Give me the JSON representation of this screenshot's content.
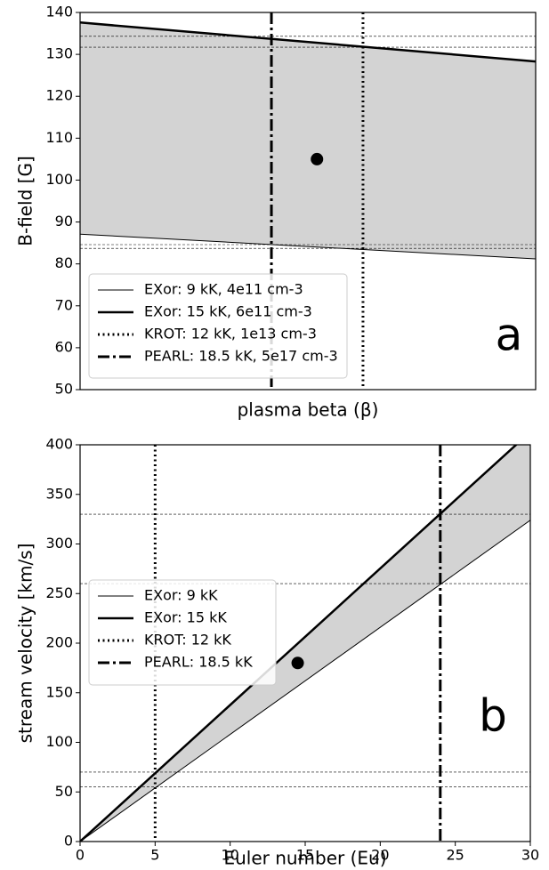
{
  "chart_data": [
    {
      "type": "line",
      "xlabel": "plasma beta (β)",
      "ylabel": "B-field [G]",
      "panel_label": "a",
      "xlim": [
        0,
        1
      ],
      "ylim": [
        50,
        140
      ],
      "yticks": [
        50,
        60,
        70,
        80,
        90,
        100,
        110,
        120,
        130,
        140
      ],
      "band_color": "#d3d3d3",
      "legend": "lower left",
      "series": [
        {
          "name": "EXor: 9 kK, 4e11 cm-3",
          "color": "#000000",
          "style": "solid",
          "width": 1,
          "x": [
            0,
            1
          ],
          "values": [
            87.1,
            81.2
          ]
        },
        {
          "name": "EXor: 15 kK, 6e11 cm-3",
          "color": "#000000",
          "style": "solid",
          "width": 2.5,
          "x": [
            0,
            1
          ],
          "values": [
            137.6,
            128.3
          ]
        },
        {
          "name": "KROT: 12 kK, 1e13 cm-3",
          "color": "#000000",
          "style": "dotted",
          "width": 3,
          "vline": 0.621
        },
        {
          "name": "PEARL: 18.5 kK, 5e17 cm-3",
          "color": "#000000",
          "style": "dashdot",
          "width": 3,
          "vline": 0.42
        }
      ],
      "hlines": [
        134.3,
        131.7,
        84.6,
        83.7
      ],
      "points": [
        {
          "x": 0.52,
          "y": 105
        }
      ]
    },
    {
      "type": "line",
      "xlabel": "Euler number (Eu)",
      "ylabel": "stream velocity [km/s]",
      "panel_label": "b",
      "xlim": [
        0,
        30
      ],
      "xticks": [
        0,
        5,
        10,
        15,
        20,
        25,
        30
      ],
      "ylim": [
        0,
        400
      ],
      "yticks": [
        0,
        50,
        100,
        150,
        200,
        250,
        300,
        350,
        400
      ],
      "band_color": "#d3d3d3",
      "legend": "center left",
      "series": [
        {
          "name": "EXor: 9 kK",
          "color": "#000000",
          "style": "solid",
          "width": 1,
          "x": [
            0,
            30
          ],
          "values": [
            0,
            324
          ]
        },
        {
          "name": "EXor: 15 kK",
          "color": "#000000",
          "style": "solid",
          "width": 2.5,
          "x": [
            0,
            30
          ],
          "values": [
            0,
            413
          ]
        },
        {
          "name": "KROT: 12 kK",
          "color": "#000000",
          "style": "dotted",
          "width": 3,
          "vline": 5
        },
        {
          "name": "PEARL: 18.5 kK",
          "color": "#000000",
          "style": "dashdot",
          "width": 3,
          "vline": 24
        }
      ],
      "hlines": [
        330,
        260,
        70,
        55
      ],
      "points": [
        {
          "x": 14.5,
          "y": 180
        }
      ]
    }
  ]
}
